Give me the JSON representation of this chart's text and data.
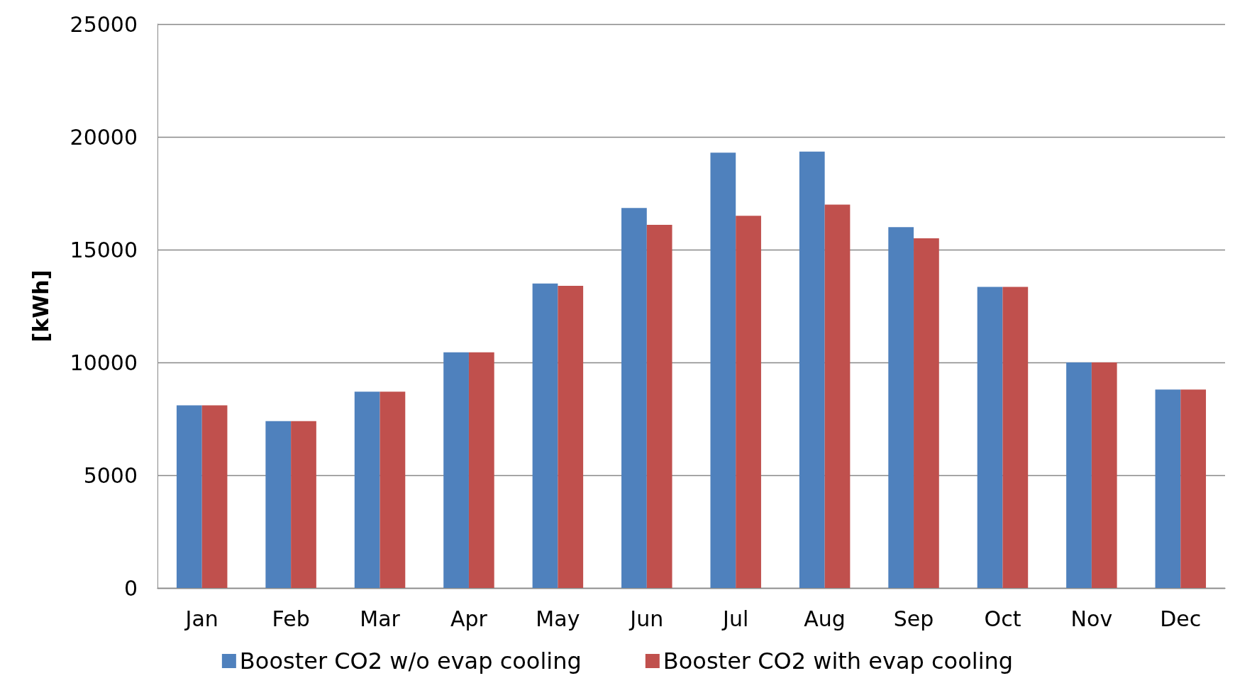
{
  "chart_data": {
    "type": "bar",
    "ylabel": "[kWh]",
    "categories": [
      "Jan",
      "Feb",
      "Mar",
      "Apr",
      "May",
      "Jun",
      "Jul",
      "Aug",
      "Sep",
      "Oct",
      "Nov",
      "Dec"
    ],
    "series": [
      {
        "name": "Booster CO2 w/o evap cooling",
        "color": "#4f81bd",
        "values": [
          8100,
          7400,
          8700,
          10450,
          13500,
          16850,
          19300,
          19350,
          16000,
          13350,
          10000,
          8800
        ]
      },
      {
        "name": "Booster CO2 with evap cooling",
        "color": "#c0504d",
        "values": [
          8100,
          7400,
          8700,
          10450,
          13400,
          16100,
          16500,
          17000,
          15500,
          13350,
          10000,
          8800
        ]
      }
    ],
    "ylim": [
      0,
      25000
    ],
    "yticks": [
      0,
      5000,
      10000,
      15000,
      20000,
      25000
    ],
    "grid": "y",
    "legend": "bottom"
  }
}
